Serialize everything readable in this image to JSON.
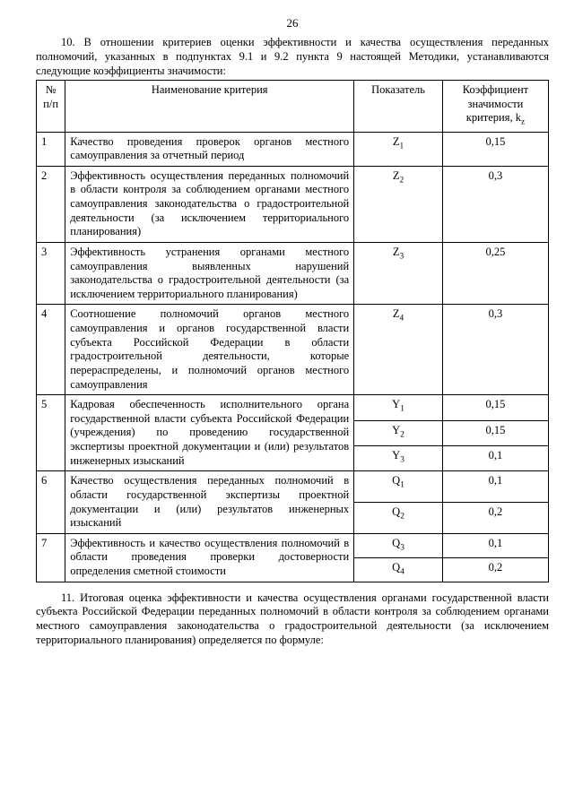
{
  "page_number": "26",
  "intro": "10. В отношении критериев оценки эффективности и качества осуществления переданных полномочий, указанных в подпунктах 9.1 и 9.2 пункта 9 настоящей Методики, устанавливаются следующие коэффициенты значимости:",
  "table": {
    "headers": {
      "num": "№ п/п",
      "name": "Наименование критерия",
      "indicator": "Показатель",
      "coef": "Коэффициент значимости критерия, k",
      "coef_sub": "z"
    },
    "rows": [
      {
        "num": "1",
        "name": "Качество проведения проверок органов местного самоуправления за отчетный период",
        "cells": [
          {
            "ind_base": "Z",
            "ind_sub": "1",
            "coef": "0,15"
          }
        ]
      },
      {
        "num": "2",
        "name": "Эффективность осуществления переданных полномочий в области контроля за соблюдением органами местного самоуправления законодательства о градостроительной деятельности (за исключением территориального планирования)",
        "cells": [
          {
            "ind_base": "Z",
            "ind_sub": "2",
            "coef": "0,3"
          }
        ]
      },
      {
        "num": "3",
        "name": "Эффективность устранения органами местного самоуправления выявленных нарушений законодательства о градостроительной деятельности (за исключением территориального планирования)",
        "cells": [
          {
            "ind_base": "Z",
            "ind_sub": "3",
            "coef": "0,25"
          }
        ]
      },
      {
        "num": "4",
        "name": "Соотношение полномочий органов местного самоуправления и органов государственной власти субъекта Российской Федерации в области градостроительной деятельности, которые перераспределены, и полномочий органов местного самоуправления",
        "cells": [
          {
            "ind_base": "Z",
            "ind_sub": "4",
            "coef": "0,3"
          }
        ]
      },
      {
        "num": "5",
        "name": "Кадровая обеспеченность исполнительного органа государственной власти субъекта Российской Федерации (учреждения) по проведению государственной экспертизы проектной документации и (или) результатов инженерных изысканий",
        "cells": [
          {
            "ind_base": "Y",
            "ind_sub": "1",
            "coef": "0,15"
          },
          {
            "ind_base": "Y",
            "ind_sub": "2",
            "coef": "0,15"
          },
          {
            "ind_base": "Y",
            "ind_sub": "3",
            "coef": "0,1"
          }
        ]
      },
      {
        "num": "6",
        "name": "Качество осуществления переданных полномочий в области государственной экспертизы проектной документации и (или) результатов инженерных изысканий",
        "cells": [
          {
            "ind_base": "Q",
            "ind_sub": "1",
            "coef": "0,1"
          },
          {
            "ind_base": "Q",
            "ind_sub": "2",
            "coef": "0,2"
          }
        ]
      },
      {
        "num": "7",
        "name": "Эффективность и качество осуществления полномочий в области проведения проверки достоверности определения сметной стоимости",
        "cells": [
          {
            "ind_base": "Q",
            "ind_sub": "3",
            "coef": "0,1"
          },
          {
            "ind_base": "Q",
            "ind_sub": "4",
            "coef": "0,2"
          }
        ]
      }
    ]
  },
  "outro": "11. Итоговая оценка эффективности и качества осуществления органами государственной власти субъекта Российской Федерации переданных полномочий в области контроля за соблюдением органами местного самоуправления законодательства о градостроительной деятельности (за исключением территориального планирования) определяется по формуле:"
}
